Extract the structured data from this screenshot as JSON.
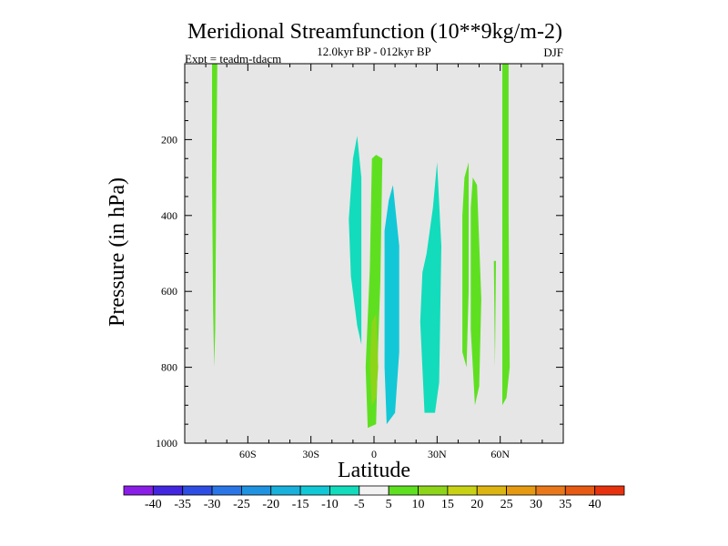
{
  "chart_data": {
    "type": "heatmap",
    "title": "Meridional Streamfunction (10**9kg/m-2)",
    "subtitle": "12.0kyr BP - 012kyr BP",
    "left_label": "Expt = teadm-tdacm",
    "right_label": "DJF",
    "xlabel": "Latitude",
    "ylabel": "Pressure (in hPa)",
    "xlim": [
      -90,
      90
    ],
    "ylim": [
      0,
      1000
    ],
    "y_reversed": true,
    "background_color": "#e6e6e6",
    "x_ticks": [
      {
        "value": -60,
        "label": "60S"
      },
      {
        "value": -30,
        "label": "30S"
      },
      {
        "value": 0,
        "label": "0"
      },
      {
        "value": 30,
        "label": "30N"
      },
      {
        "value": 60,
        "label": "60N"
      }
    ],
    "y_ticks": [
      {
        "value": 200,
        "label": "200"
      },
      {
        "value": 400,
        "label": "400"
      },
      {
        "value": 600,
        "label": "600"
      },
      {
        "value": 800,
        "label": "800"
      },
      {
        "value": 1000,
        "label": "1000"
      }
    ],
    "colorbar": {
      "levels": [
        "-40",
        "-35",
        "-30",
        "-25",
        "-20",
        "-15",
        "-10",
        "-5",
        "5",
        "10",
        "15",
        "20",
        "25",
        "30",
        "35",
        "40"
      ],
      "colors": [
        "#8a1ee6",
        "#4226e0",
        "#2e4ee3",
        "#2a76e6",
        "#1f93e0",
        "#19b0dc",
        "#12c8d6",
        "#12dcbc",
        "#f2f2f2",
        "#5ee021",
        "#8cd519",
        "#c8d215",
        "#ddb512",
        "#e69a12",
        "#e8781a",
        "#e65a14",
        "#e6320e"
      ]
    },
    "contour_regions": [
      {
        "value": 7,
        "color": "#5ee021",
        "points": [
          [
            -77,
            0
          ],
          [
            -74.5,
            0
          ],
          [
            -75,
            300
          ],
          [
            -75.5,
            700
          ],
          [
            -76,
            800
          ],
          [
            -76.5,
            650
          ],
          [
            -77,
            300
          ]
        ]
      },
      {
        "value": -7,
        "color": "#12dcbc",
        "points": [
          [
            -12,
            410
          ],
          [
            -10,
            250
          ],
          [
            -8,
            190
          ],
          [
            -6,
            300
          ],
          [
            -6,
            740
          ],
          [
            -8,
            690
          ],
          [
            -11,
            560
          ]
        ]
      },
      {
        "value": 7,
        "color": "#5ee021",
        "points": [
          [
            -2,
            540
          ],
          [
            -1,
            250
          ],
          [
            1,
            240
          ],
          [
            4,
            250
          ],
          [
            3,
            580
          ],
          [
            2,
            740
          ],
          [
            1,
            950
          ],
          [
            -3,
            960
          ],
          [
            -4,
            800
          ]
        ]
      },
      {
        "value": 12,
        "color": "#8cd519",
        "points": [
          [
            -2,
            790
          ],
          [
            -1,
            680
          ],
          [
            1,
            660
          ],
          [
            2,
            800
          ],
          [
            1,
            880
          ],
          [
            -1,
            900
          ]
        ]
      },
      {
        "value": -10,
        "color": "#12c8d6",
        "points": [
          [
            5,
            440
          ],
          [
            7,
            360
          ],
          [
            9,
            320
          ],
          [
            12,
            480
          ],
          [
            12,
            760
          ],
          [
            10,
            920
          ],
          [
            6,
            950
          ],
          [
            5,
            800
          ]
        ]
      },
      {
        "value": -7,
        "color": "#12dcbc",
        "points": [
          [
            22,
            680
          ],
          [
            23,
            550
          ],
          [
            25,
            500
          ],
          [
            28,
            380
          ],
          [
            30,
            260
          ],
          [
            32,
            480
          ],
          [
            31,
            840
          ],
          [
            29,
            920
          ],
          [
            24,
            920
          ]
        ]
      },
      {
        "value": 7,
        "color": "#5ee021",
        "points": [
          [
            42,
            400
          ],
          [
            43,
            300
          ],
          [
            45,
            260
          ],
          [
            45,
            600
          ],
          [
            44,
            800
          ],
          [
            42,
            760
          ]
        ]
      },
      {
        "value": 7,
        "color": "#5ee021",
        "points": [
          [
            46,
            380
          ],
          [
            47,
            300
          ],
          [
            49,
            320
          ],
          [
            51,
            620
          ],
          [
            50,
            850
          ],
          [
            48,
            900
          ],
          [
            46,
            700
          ]
        ]
      },
      {
        "value": 7,
        "color": "#5ee021",
        "points": [
          [
            57,
            520
          ],
          [
            58,
            520
          ],
          [
            57.5,
            800
          ]
        ]
      },
      {
        "value": 7,
        "color": "#5ee021",
        "points": [
          [
            61,
            0
          ],
          [
            64,
            0
          ],
          [
            64,
            400
          ],
          [
            64.5,
            800
          ],
          [
            63,
            880
          ],
          [
            61,
            900
          ],
          [
            61,
            500
          ]
        ]
      }
    ]
  }
}
